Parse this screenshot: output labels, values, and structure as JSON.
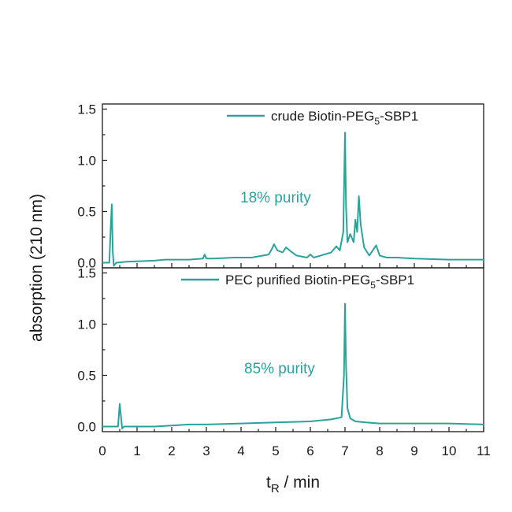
{
  "chart_data": {
    "type": "line",
    "color": "#2aa39a",
    "xlabel": {
      "main": "t",
      "sub": "R",
      "rest": " / min"
    },
    "ylabel": "absorption (210 nm)",
    "xlim": [
      0,
      11
    ],
    "ylim": [
      -0.05,
      1.55
    ],
    "x_ticks": [
      "0",
      "1",
      "2",
      "3",
      "4",
      "5",
      "6",
      "7",
      "8",
      "9",
      "10",
      "11"
    ],
    "y_ticks": [
      "0.0",
      "0.5",
      "1.0",
      "1.5"
    ],
    "panels": [
      {
        "legend": {
          "pre": "crude Biotin-PEG",
          "sub": "5",
          "post": "-SBP1"
        },
        "annotation": "18% purity",
        "x": [
          0,
          0.2,
          0.24,
          0.27,
          0.3,
          0.33,
          0.4,
          0.7,
          1.5,
          1.8,
          2.0,
          2.5,
          2.9,
          2.95,
          3.0,
          3.2,
          3.8,
          4.3,
          4.8,
          4.9,
          4.95,
          5.05,
          5.2,
          5.3,
          5.4,
          5.6,
          5.9,
          6.0,
          6.1,
          6.3,
          6.6,
          6.75,
          6.85,
          6.95,
          7.0,
          7.03,
          7.07,
          7.15,
          7.25,
          7.3,
          7.35,
          7.4,
          7.45,
          7.55,
          7.7,
          7.9,
          8.0,
          8.2,
          8.5,
          9.0,
          10.0,
          11.0
        ],
        "y": [
          0.0,
          0.0,
          0.35,
          0.57,
          0.1,
          -0.03,
          0.0,
          0.01,
          0.02,
          0.03,
          0.03,
          0.03,
          0.04,
          0.08,
          0.04,
          0.04,
          0.05,
          0.05,
          0.08,
          0.14,
          0.18,
          0.12,
          0.1,
          0.15,
          0.12,
          0.07,
          0.05,
          0.08,
          0.05,
          0.07,
          0.1,
          0.16,
          0.12,
          0.3,
          1.27,
          0.55,
          0.2,
          0.28,
          0.2,
          0.42,
          0.3,
          0.65,
          0.38,
          0.15,
          0.07,
          0.17,
          0.07,
          0.05,
          0.05,
          0.04,
          0.03,
          0.03
        ]
      },
      {
        "legend": {
          "pre": "PEC purified Biotin-PEG",
          "sub": "5",
          "post": "-SBP1"
        },
        "annotation": "85% purity",
        "x": [
          0,
          0.45,
          0.5,
          0.53,
          0.57,
          0.62,
          0.8,
          1.5,
          2.0,
          2.5,
          3.0,
          4.0,
          5.0,
          6.0,
          6.6,
          6.9,
          6.97,
          7.0,
          7.03,
          7.07,
          7.15,
          7.3,
          7.6,
          8.0,
          8.5,
          9.0,
          10.0,
          11.0
        ],
        "y": [
          0.0,
          0.0,
          0.22,
          0.12,
          -0.02,
          0.0,
          0.0,
          0.0,
          0.01,
          0.02,
          0.02,
          0.03,
          0.04,
          0.05,
          0.07,
          0.09,
          0.5,
          1.2,
          0.6,
          0.18,
          0.08,
          0.05,
          0.04,
          0.03,
          0.03,
          0.03,
          0.03,
          0.02
        ]
      }
    ]
  }
}
